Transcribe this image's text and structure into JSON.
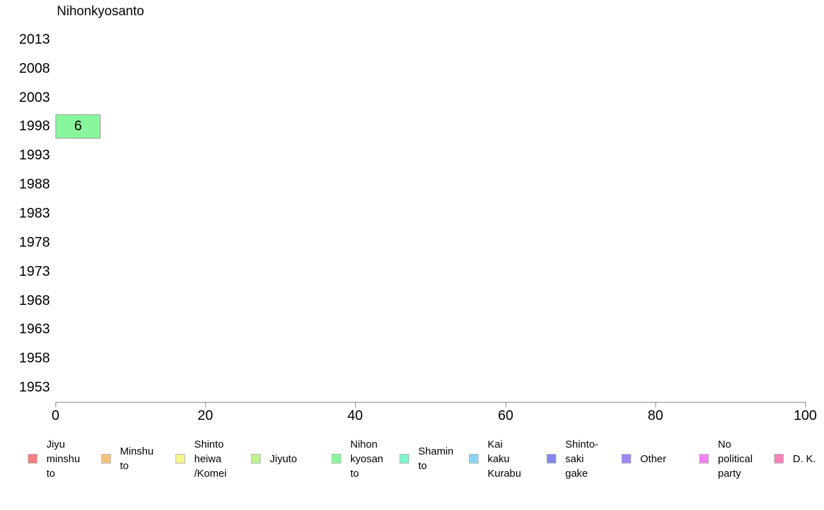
{
  "page": {
    "background": "#ffffff"
  },
  "chart_data": {
    "type": "bar",
    "orientation": "horizontal",
    "title": "Nihonkyosanto",
    "categories": [
      "2013",
      "2008",
      "2003",
      "1998",
      "1993",
      "1988",
      "1983",
      "1978",
      "1973",
      "1968",
      "1963",
      "1958",
      "1953"
    ],
    "values": [
      0,
      0,
      0,
      6,
      0,
      0,
      0,
      0,
      0,
      0,
      0,
      0,
      0
    ],
    "bar_labels": [
      "",
      "",
      "",
      "6",
      "",
      "",
      "",
      "",
      "",
      "",
      "",
      "",
      ""
    ],
    "xlabel": "",
    "ylabel": "",
    "xlim": [
      0,
      100
    ],
    "xticks": [
      0,
      20,
      40,
      60,
      80,
      100
    ],
    "grid": false,
    "bar_color": "#88F79C",
    "bar_border_color": "#9e9e9e",
    "axis_color": "#8c8c8c",
    "legend_position": "bottom",
    "legend": [
      {
        "label": "Jiyu minshu to",
        "lines": [
          "Jiyu",
          "minshu",
          "to"
        ],
        "color": "#F57E7E"
      },
      {
        "label": "Minshu to",
        "lines": [
          "Minshu",
          "to"
        ],
        "color": "#F5C17E"
      },
      {
        "label": "Shinto heiwa /Komei",
        "lines": [
          "Shinto",
          "heiwa",
          "/Komei"
        ],
        "color": "#F5F58C"
      },
      {
        "label": "Jiyuto",
        "lines": [
          "Jiyuto"
        ],
        "color": "#BEF58C"
      },
      {
        "label": "Nihon kyosan to",
        "lines": [
          "Nihon",
          "kyosan",
          "to"
        ],
        "color": "#88F79C"
      },
      {
        "label": "Shamin to",
        "lines": [
          "Shamin",
          "to"
        ],
        "color": "#7EF5C8"
      },
      {
        "label": "Kai kaku Kurabu",
        "lines": [
          "Kai",
          "kaku",
          "Kurabu"
        ],
        "color": "#8CD5F5"
      },
      {
        "label": "Shinto-sakigake",
        "lines": [
          "Shinto-",
          "saki",
          "gake"
        ],
        "color": "#8487F0"
      },
      {
        "label": "Other",
        "lines": [
          "Other"
        ],
        "color": "#9E86F5"
      },
      {
        "label": "No political party",
        "lines": [
          "No",
          "political",
          "party"
        ],
        "color": "#F580F5"
      },
      {
        "label": "D. K.",
        "lines": [
          "D. K."
        ],
        "color": "#F580BC"
      }
    ]
  }
}
